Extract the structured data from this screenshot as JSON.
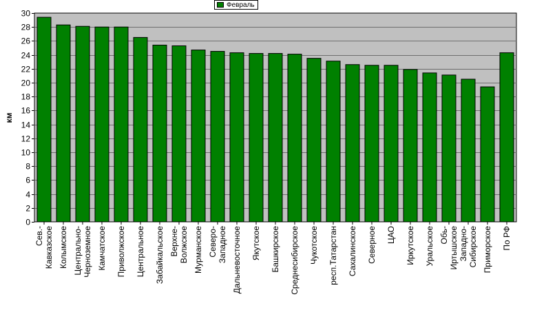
{
  "chart_data": {
    "type": "bar",
    "ylabel": "км",
    "xlabel": "",
    "ylim": [
      0,
      30
    ],
    "y_ticks": [
      0,
      2,
      4,
      6,
      8,
      10,
      12,
      14,
      16,
      18,
      20,
      22,
      24,
      26,
      28,
      30
    ],
    "grid": true,
    "legend_position": "top-center",
    "bar_color": "#008000",
    "plot_background": "#c0c0c0",
    "categories": [
      "Сев.-Кавказское",
      "Колымское",
      "Центрально-Черноземное",
      "Камчатское",
      "Приволжское",
      "Центральное",
      "Забайкальское",
      "Верхне-Волжское",
      "Мурманское",
      "Северо-Западное",
      "Дальневосточное",
      "Якутское",
      "Башкирское",
      "Среднесибирское",
      "Чукотское",
      "респ.Татарстан",
      "Сахалинское",
      "Северное",
      "ЦАО",
      "Иркутское",
      "Уральское",
      "Обь-Иртышское",
      "Западно-Сибирское",
      "Приморское",
      "По РФ"
    ],
    "category_lines": [
      [
        "Сев.-",
        "Кавказское"
      ],
      [
        "Колымское"
      ],
      [
        "Центрально-",
        "Черноземное"
      ],
      [
        "Камчатское"
      ],
      [
        "Приволжское"
      ],
      [
        "Центральное"
      ],
      [
        "Забайкальское"
      ],
      [
        "Верхне-",
        "Волжское"
      ],
      [
        "Мурманское"
      ],
      [
        "Северо-",
        "Западное"
      ],
      [
        "Дальневосточное"
      ],
      [
        "Якутское"
      ],
      [
        "Башкирское"
      ],
      [
        "Среднесибирское"
      ],
      [
        "Чукотское"
      ],
      [
        "респ.Татарстан"
      ],
      [
        "Сахалинское"
      ],
      [
        "Северное"
      ],
      [
        "ЦАО"
      ],
      [
        "Иркутское"
      ],
      [
        "Уральское"
      ],
      [
        "Обь-",
        "Иртышское"
      ],
      [
        "Западно-",
        "Сибирское"
      ],
      [
        "Приморское"
      ],
      [
        "По РФ"
      ]
    ],
    "series": [
      {
        "name": "Февраль",
        "values": [
          29.4,
          28.3,
          28.1,
          28.0,
          28.0,
          26.5,
          25.4,
          25.3,
          24.7,
          24.5,
          24.3,
          24.2,
          24.2,
          24.1,
          23.5,
          23.1,
          22.6,
          22.5,
          22.5,
          21.9,
          21.4,
          21.1,
          20.5,
          19.4,
          24.3
        ]
      }
    ]
  }
}
